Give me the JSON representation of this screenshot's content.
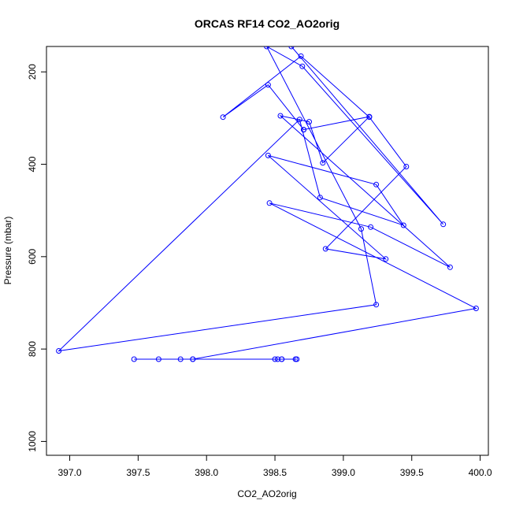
{
  "chart_data": {
    "type": "line",
    "title": "ORCAS RF14 CO2_AO2orig",
    "xlabel": "CO2_AO2orig",
    "ylabel": "Pressure (mbar)",
    "xlim": [
      396.83,
      400.06
    ],
    "ylim": [
      1030,
      145
    ],
    "y_reversed": true,
    "grid": false,
    "x_ticks": [
      {
        "value": 397.0,
        "label": "397.0"
      },
      {
        "value": 397.5,
        "label": "397.5"
      },
      {
        "value": 398.0,
        "label": "398.0"
      },
      {
        "value": 398.5,
        "label": "398.5"
      },
      {
        "value": 399.0,
        "label": "399.0"
      },
      {
        "value": 399.5,
        "label": "399.5"
      },
      {
        "value": 400.0,
        "label": "400.0"
      }
    ],
    "y_ticks": [
      {
        "value": 200,
        "label": "200"
      },
      {
        "value": 400,
        "label": "400"
      },
      {
        "value": 600,
        "label": "600"
      },
      {
        "value": 800,
        "label": "800"
      },
      {
        "value": 1000,
        "label": "1000"
      }
    ],
    "series": [
      {
        "color": "#0000ff",
        "x": [
          398.66,
          398.55,
          398.5,
          398.65,
          397.47,
          397.65,
          397.81,
          397.9,
          398.52,
          398.55,
          397.9,
          399.97,
          398.46,
          399.2,
          399.78,
          398.54,
          398.75,
          398.85,
          399.19,
          398.71,
          398.71,
          398.45,
          398.12,
          398.69,
          399.19,
          399.46,
          398.87,
          399.31,
          398.45,
          399.24,
          399.44,
          398.83,
          398.68,
          396.92,
          399.24,
          399.13,
          398.44,
          398.7,
          399.73,
          398.62
        ],
        "y": [
          822,
          822,
          822,
          822,
          822,
          822,
          822,
          822,
          822,
          822,
          822,
          712,
          484,
          536,
          623,
          295,
          308,
          397,
          297,
          325,
          325,
          228,
          298,
          166,
          298,
          405,
          583,
          605,
          381,
          444,
          532,
          472,
          303,
          804,
          704,
          540,
          145,
          188,
          530,
          145
        ]
      }
    ]
  }
}
